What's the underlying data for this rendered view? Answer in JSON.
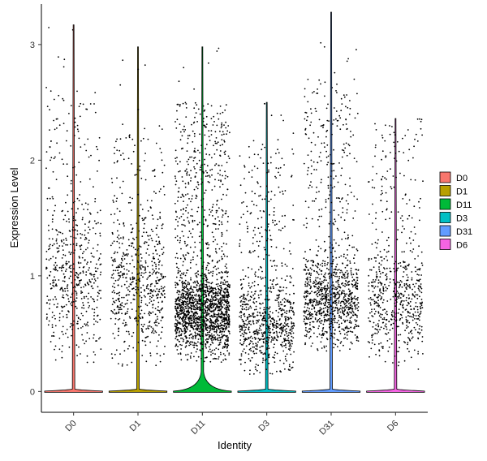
{
  "chart_data": {
    "type": "violin",
    "xlabel": "Identity",
    "ylabel": "Expression Level",
    "categories": [
      "D0",
      "D1",
      "D11",
      "D3",
      "D31",
      "D6"
    ],
    "ylim": [
      -0.18,
      3.35
    ],
    "yticks": [
      0,
      1,
      2,
      3
    ],
    "ytick_labels": [
      "0",
      "1",
      "2",
      "3"
    ],
    "colors": [
      "#F8766D",
      "#B79F00",
      "#00BA38",
      "#00BFC4",
      "#619CFF",
      "#F564E3"
    ],
    "series": [
      {
        "name": "D0",
        "max": 3.17,
        "jitter_n": 560,
        "jitter_min": 0.25,
        "jitter_max": 2.6,
        "bulk_center": 1.0,
        "bulk_spread": 0.9
      },
      {
        "name": "D1",
        "max": 2.98,
        "jitter_n": 640,
        "jitter_min": 0.22,
        "jitter_max": 2.3,
        "bulk_center": 0.9,
        "bulk_spread": 0.8
      },
      {
        "name": "D11",
        "max": 2.98,
        "jitter_n": 1900,
        "jitter_min": 0.25,
        "jitter_max": 2.5,
        "bulk_center": 0.7,
        "bulk_spread": 0.45
      },
      {
        "name": "D3",
        "max": 2.5,
        "jitter_n": 820,
        "jitter_min": 0.15,
        "jitter_max": 2.2,
        "bulk_center": 0.6,
        "bulk_spread": 0.5
      },
      {
        "name": "D31",
        "max": 3.28,
        "jitter_n": 1100,
        "jitter_min": 0.35,
        "jitter_max": 2.7,
        "bulk_center": 0.8,
        "bulk_spread": 0.5
      },
      {
        "name": "D6",
        "max": 2.36,
        "jitter_n": 620,
        "jitter_min": 0.18,
        "jitter_max": 2.3,
        "bulk_center": 0.8,
        "bulk_spread": 0.55
      }
    ],
    "legend": {
      "position": "right",
      "entries": [
        "D0",
        "D1",
        "D11",
        "D3",
        "D31",
        "D6"
      ]
    }
  }
}
